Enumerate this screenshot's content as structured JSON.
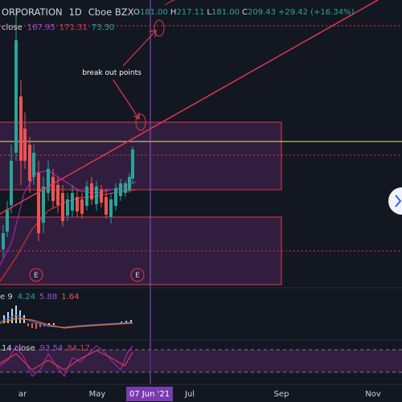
{
  "header": {
    "symbol": "ORPORATION",
    "interval": "1D",
    "exchange": "Cboe BZX",
    "ohlc": [
      {
        "label": "O",
        "value": "181.00"
      },
      {
        "label": "H",
        "value": "217.11"
      },
      {
        "label": "L",
        "value": "181.00"
      },
      {
        "label": "C",
        "value": "209.43"
      }
    ],
    "change": "+29.42 (+16.34%)"
  },
  "ma_legend": {
    "label": "close",
    "values": [
      "167.95",
      "171.31",
      "73.30"
    ]
  },
  "annotation": "break out points",
  "earnings_markers": [
    "E",
    "E"
  ],
  "macd_legend": {
    "label": "e 9",
    "values": [
      "4.24",
      "5.88",
      "1.64"
    ]
  },
  "rsi_legend": {
    "label": "14 close",
    "values": [
      "93.54",
      "84.17"
    ]
  },
  "time_axis": [
    "ar",
    "May",
    "07 Jun '21",
    "Jul",
    "Sep",
    "Nov"
  ]
}
